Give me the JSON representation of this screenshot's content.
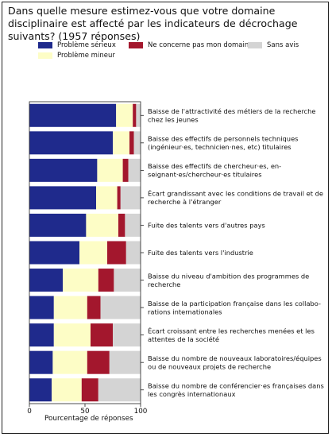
{
  "chart_data": {
    "type": "bar",
    "orientation": "horizontal",
    "stacked": true,
    "title": "Dans quelle mesure estimez-vous que votre domaine disciplinaire est affecté par les indicateurs de décrochage suivants? (1957 réponses)",
    "xlabel": "Pourcentage de réponses",
    "ylabel": "",
    "xlim": [
      0,
      100
    ],
    "xticks": [
      "0",
      "50",
      "100"
    ],
    "legend_position": "top",
    "categories": [
      [
        "Baisse de l'attractivité des métiers de la recherche",
        "chez les jeunes"
      ],
      [
        "Baisse des effectifs de personnels techniques",
        "(ingénieur·es, technicien·nes, etc) titulaires"
      ],
      [
        "Baisse des effectifs de chercheur·es, en-",
        "seignant·es/chercheur·es titulaires"
      ],
      [
        "Écart grandissant avec les conditions de travail et de",
        "recherche à l'étranger"
      ],
      [
        "Fuite des talents vers d'autres pays"
      ],
      [
        "Fuite des talents vers l'industrie"
      ],
      [
        "Baisse du niveau d'ambition des programmes de",
        "recherche"
      ],
      [
        "Baisse de la participation française dans les collabo-",
        "rations internationales"
      ],
      [
        "Écart croissant entre les recherches menées et les",
        "attentes de la société"
      ],
      [
        "Baisse du nombre de nouveaux laboratoires/équipes",
        "ou de nouveaux projets de recherche"
      ],
      [
        "Baisse du nombre de conférencier·es françaises dans",
        "les congrès internationaux"
      ]
    ],
    "series": [
      {
        "name": "Problème sérieux",
        "color": "#1f2a8c",
        "values": [
          78,
          75,
          61,
          60,
          51,
          45,
          30,
          22,
          22,
          21,
          20
        ]
      },
      {
        "name": "Problème mineur",
        "color": "#fdfdc6",
        "values": [
          15,
          15,
          23,
          19,
          29,
          25,
          32,
          30,
          33,
          31,
          27
        ]
      },
      {
        "name": "Ne concerne pas mon domaine",
        "color": "#a3172d",
        "values": [
          3,
          4,
          5,
          3,
          6,
          17,
          14,
          12,
          20,
          20,
          15
        ]
      },
      {
        "name": "Sans avis",
        "color": "#d4d4d4",
        "values": [
          4,
          6,
          11,
          18,
          14,
          13,
          24,
          36,
          25,
          28,
          38
        ]
      }
    ]
  }
}
